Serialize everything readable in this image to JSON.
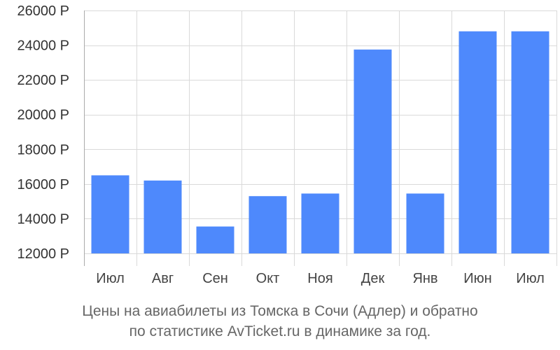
{
  "chart_data": {
    "type": "bar",
    "categories": [
      "Июл",
      "Авг",
      "Сен",
      "Окт",
      "Ноя",
      "Дек",
      "Янв",
      "Июн",
      "Июл"
    ],
    "values": [
      16500,
      16200,
      13550,
      15300,
      15450,
      23750,
      15450,
      24800,
      24800
    ],
    "ylim": [
      12000,
      26000
    ],
    "yticks": [
      12000,
      14000,
      16000,
      18000,
      20000,
      22000,
      24000,
      26000
    ],
    "ytick_suffix": " Р",
    "grid": true,
    "bar_color": "#4e89fc",
    "caption": [
      "Цены на авиабилеты из Томска в Сочи (Адлер) и обратно",
      "по статистике AvTicket.ru в динамике за год."
    ]
  }
}
